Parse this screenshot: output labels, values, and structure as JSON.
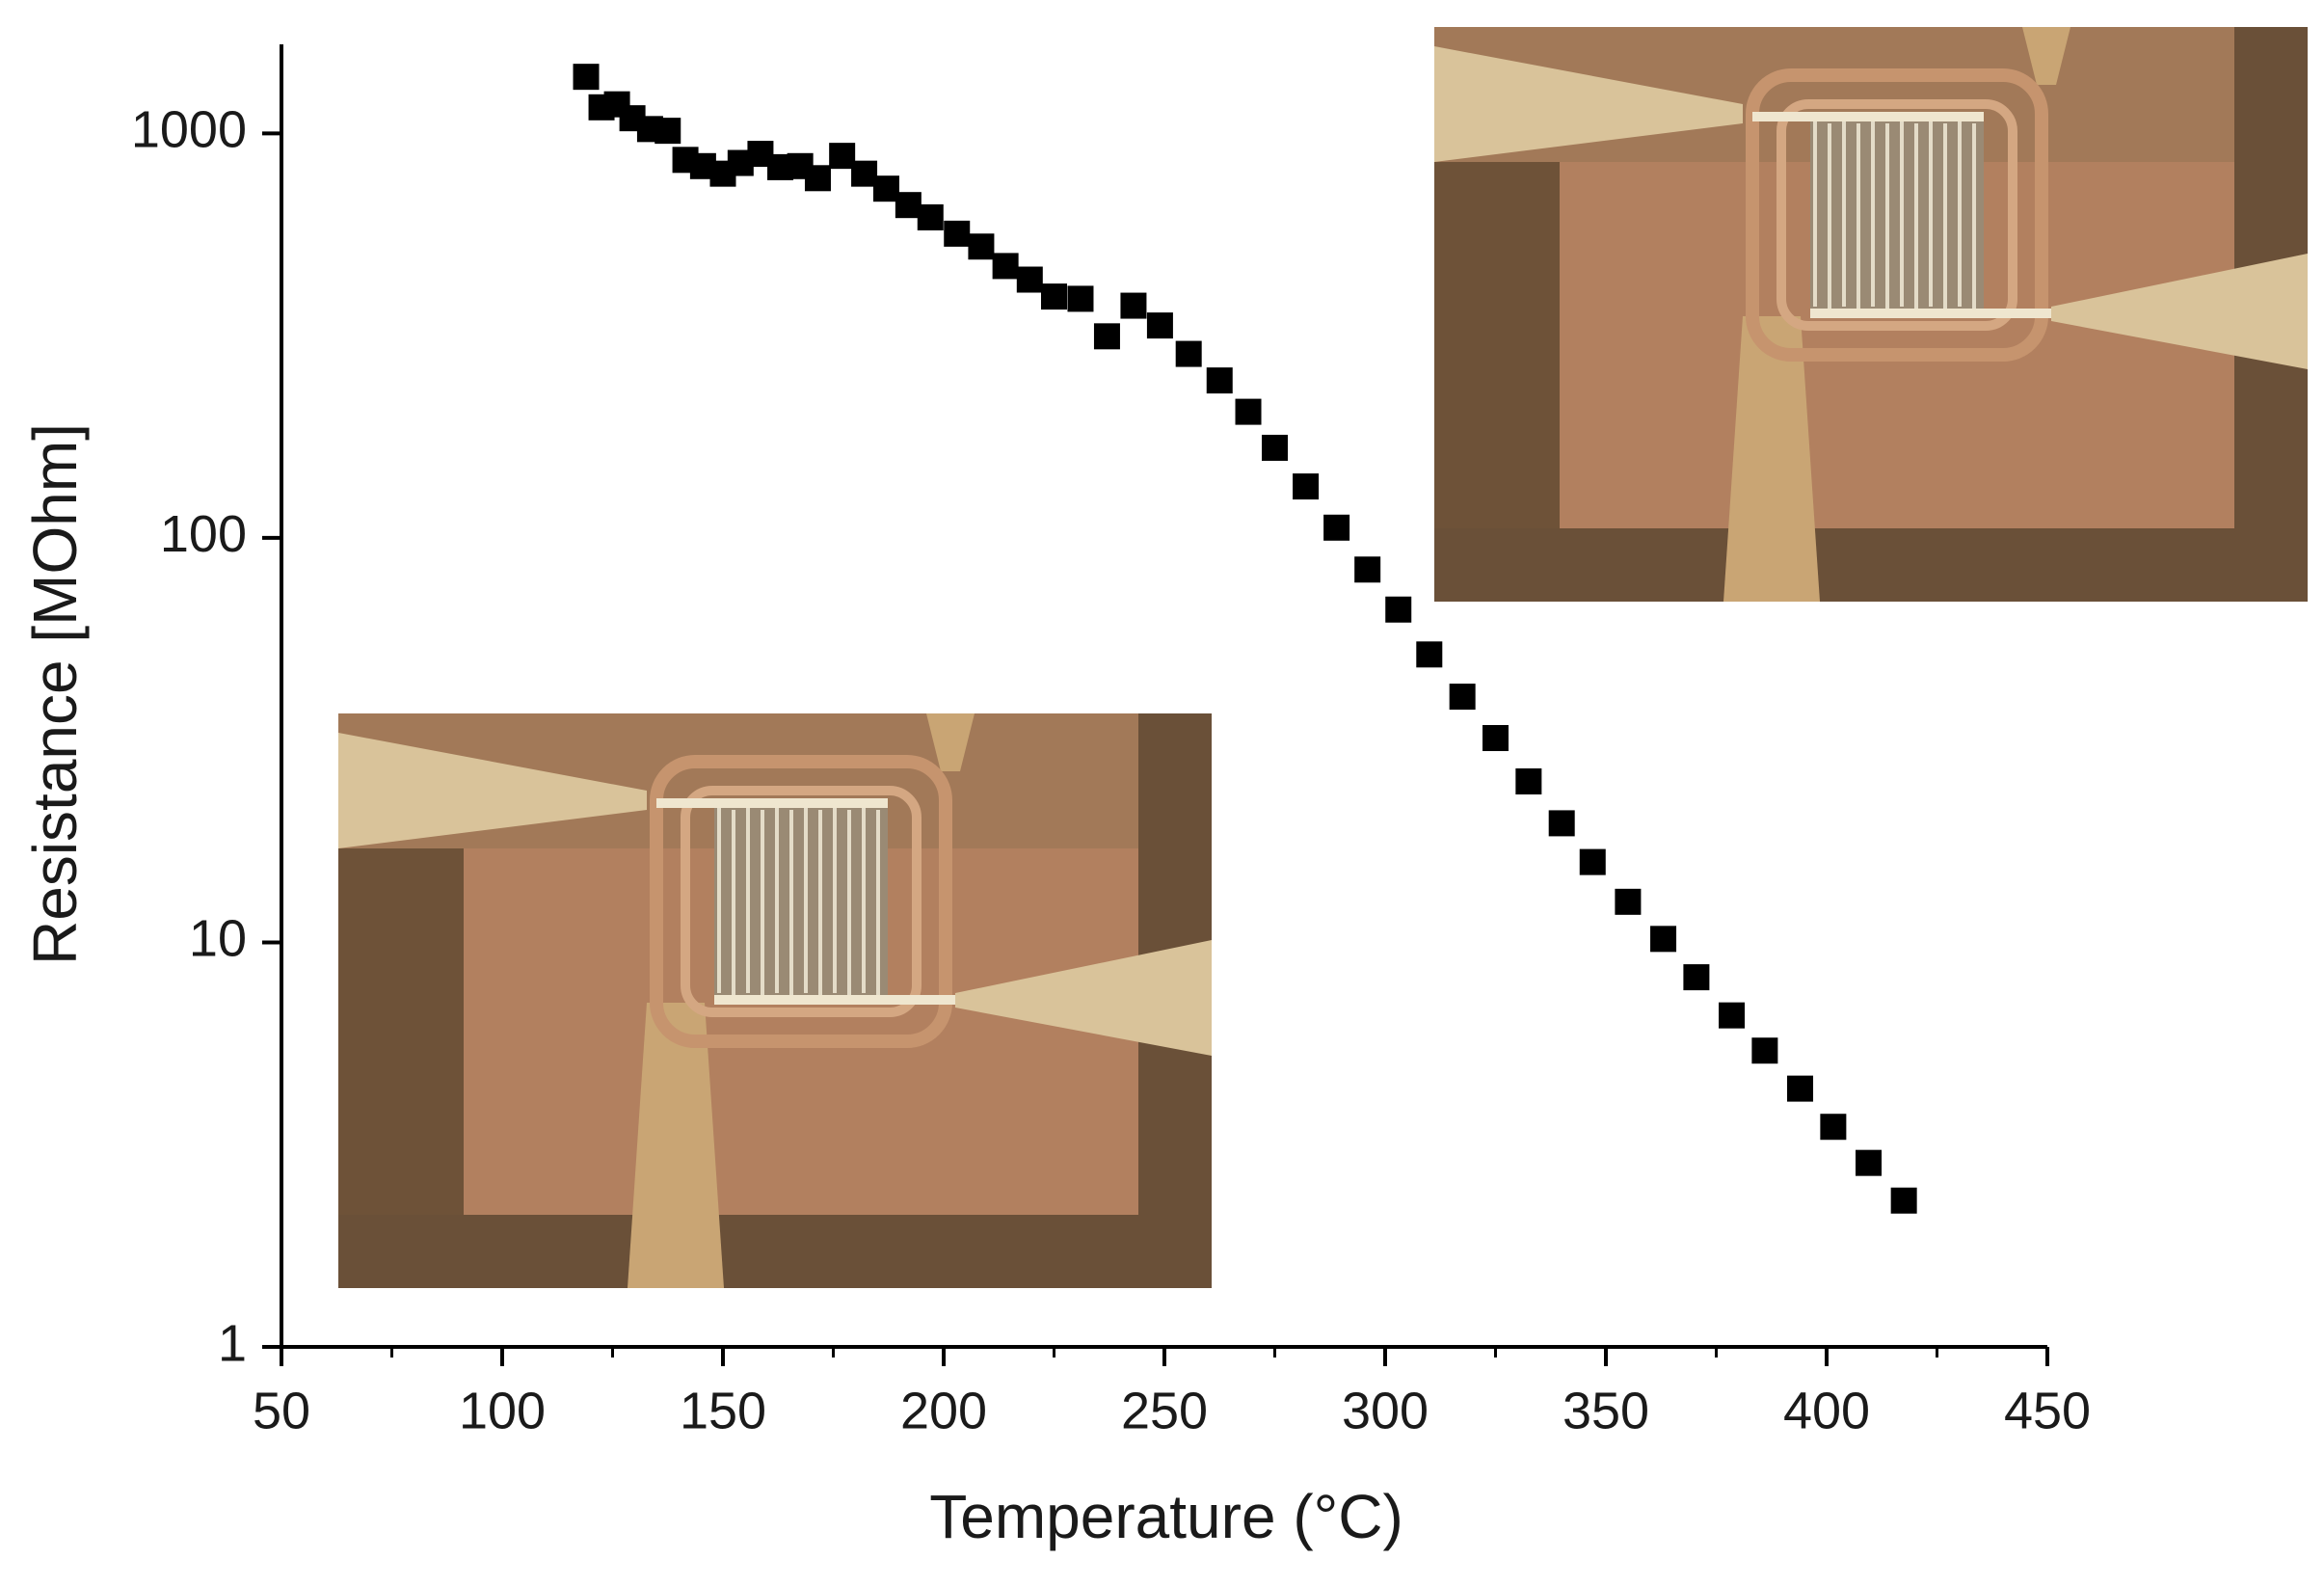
{
  "chart_data": {
    "type": "scatter",
    "x_label": "Temperature (°C)",
    "y_label": "Resistance [MOhm]",
    "x": [
      119,
      122.5,
      126,
      129.5,
      133.5,
      137.5,
      141.5,
      145.5,
      150,
      154,
      158.5,
      163,
      167.5,
      171.5,
      177,
      182,
      187,
      192,
      197,
      203,
      208.5,
      214,
      219.5,
      225,
      231,
      237,
      243,
      249,
      255.5,
      262.5,
      269,
      275,
      282,
      289,
      296,
      303,
      310,
      317.5,
      325,
      332.5,
      340,
      347,
      355,
      363,
      370.5,
      378.5,
      386,
      394,
      401.5,
      409.5,
      417.5
    ],
    "series": [
      {
        "name": "Resistance",
        "color": "#000000",
        "values": [
          1380,
          1160,
          1180,
          1090,
          1025,
          1015,
          860,
          830,
          795,
          845,
          890,
          825,
          830,
          775,
          880,
          795,
          730,
          665,
          620,
          565,
          525,
          470,
          435,
          395,
          390,
          315,
          375,
          335,
          285,
          245,
          205,
          167,
          134,
          106,
          83.5,
          66.5,
          51.5,
          40.5,
          32,
          25,
          19.7,
          15.8,
          12.6,
          10.2,
          8.2,
          6.6,
          5.4,
          4.35,
          3.5,
          2.85,
          2.3
        ]
      }
    ],
    "xlim": [
      50,
      450
    ],
    "xticks": [
      50,
      100,
      150,
      200,
      250,
      300,
      350,
      400,
      450
    ],
    "ylim": [
      1,
      1660
    ],
    "yticks": [
      1,
      10,
      100,
      1000
    ],
    "y_scale": "log",
    "grid": false,
    "marker": "square"
  }
}
